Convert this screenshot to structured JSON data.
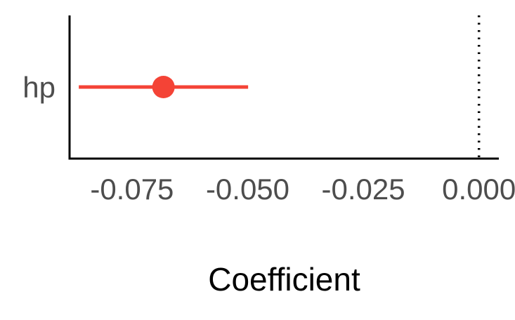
{
  "chart_data": {
    "type": "coefficient-plot",
    "title": "",
    "xlabel": "Coefficient",
    "ylabel": "",
    "categories": [
      "hp"
    ],
    "series": [
      {
        "estimate": -0.0682,
        "ci_low": -0.0865,
        "ci_high": -0.0499
      }
    ],
    "x_ticks": [
      {
        "value": -0.075,
        "label": "-0.075"
      },
      {
        "value": -0.05,
        "label": "-0.050"
      },
      {
        "value": -0.025,
        "label": "-0.025"
      },
      {
        "value": 0.0,
        "label": "0.000"
      }
    ],
    "xlim": [
      -0.0885,
      0.0043
    ],
    "reference_line": {
      "value": 0.0,
      "style": "dotted"
    },
    "grid": false,
    "legend": "none",
    "colors": {
      "point": "#f44336",
      "interval": "#f44336",
      "axis": "#000000",
      "tick_label": "#4d4d4d",
      "axis_title": "#000000"
    }
  }
}
